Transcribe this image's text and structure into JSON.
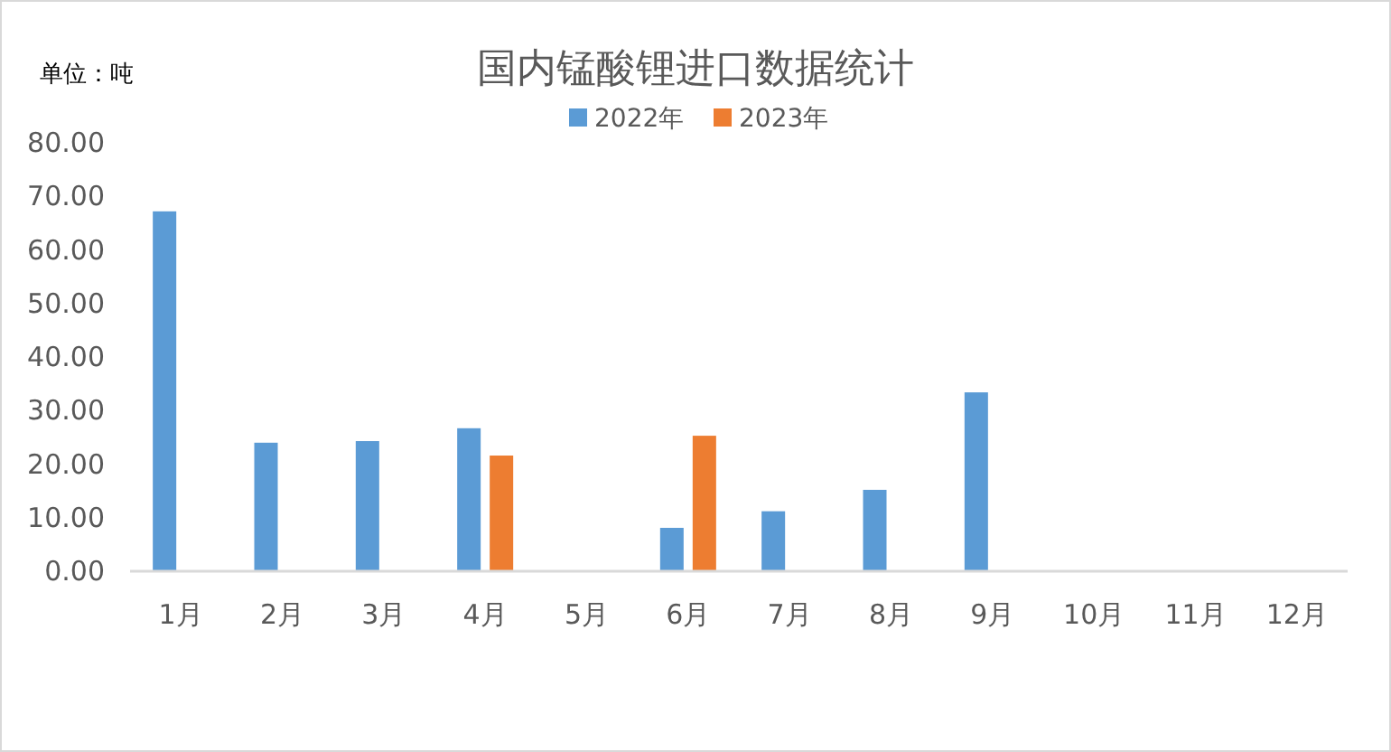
{
  "chart_data": {
    "type": "bar",
    "title": "国内锰酸锂进口数据统计",
    "annotations": [
      "单位：吨"
    ],
    "categories": [
      "1月",
      "2月",
      "3月",
      "4月",
      "5月",
      "6月",
      "7月",
      "8月",
      "9月",
      "10月",
      "11月",
      "12月"
    ],
    "series": [
      {
        "name": "2022年",
        "color": "#5b9bd5",
        "values": [
          67.2,
          24.0,
          24.3,
          26.7,
          null,
          8.1,
          11.2,
          15.2,
          33.4,
          null,
          null,
          null
        ]
      },
      {
        "name": "2023年",
        "color": "#ed7d31",
        "values": [
          null,
          null,
          null,
          21.6,
          null,
          25.3,
          null,
          null,
          null,
          null,
          null,
          null
        ]
      }
    ],
    "ylim": [
      0,
      80
    ],
    "yticks": [
      {
        "value": 0,
        "label": "0.00"
      },
      {
        "value": 10,
        "label": "10.00"
      },
      {
        "value": 20,
        "label": "20.00"
      },
      {
        "value": 30,
        "label": "30.00"
      },
      {
        "value": 40,
        "label": "40.00"
      },
      {
        "value": 50,
        "label": "50.00"
      },
      {
        "value": 60,
        "label": "60.00"
      },
      {
        "value": 70,
        "label": "70.00"
      },
      {
        "value": 80,
        "label": "80.00"
      }
    ],
    "grid": false,
    "legend": "top"
  }
}
